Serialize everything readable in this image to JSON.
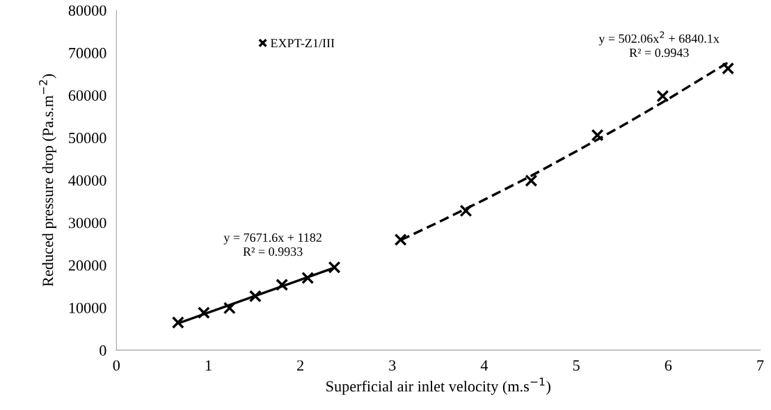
{
  "chart_data": {
    "type": "scatter",
    "xlabel": "Superficial air inlet velocity (m.s$^{−1}$)",
    "ylabel": "Reduced pressure drop (Pa.s.m$^{−2}$)",
    "series": [
      {
        "name": "EXPT-Z1/III",
        "color": "#000000",
        "marker": "cross",
        "x": [
          0.67,
          0.95,
          1.23,
          1.51,
          1.8,
          2.08,
          2.37,
          3.09,
          3.8,
          4.51,
          5.23,
          5.94,
          6.65
        ],
        "values": [
          6500,
          8800,
          9900,
          12700,
          15400,
          17000,
          19500,
          26000,
          32800,
          39900,
          50600,
          59800,
          66300
        ]
      },
      {
        "type": "line",
        "color": "#000000",
        "line_style": "solid",
        "x": [
          0.67,
          2.37
        ],
        "values": [
          6300,
          19400
        ]
      },
      {
        "type": "line",
        "color": "#000000",
        "line_style": "dashed",
        "x": [
          3.09,
          3.5,
          4.0,
          4.5,
          5.0,
          5.5,
          6.0,
          6.65
        ],
        "values": [
          25900,
          30100,
          35400,
          40900,
          46800,
          52800,
          59100,
          67700
        ]
      }
    ],
    "annotations": [
      "y = 7671.6x + 1182\nR² = 0.9933",
      "y = 502.06x$^{2}$ + 6840.1x\nR² = 0.9943"
    ],
    "xlim": [
      0,
      7
    ],
    "xticks": [
      0,
      1,
      2,
      3,
      4,
      5,
      6,
      7
    ],
    "ylim": [
      0,
      80000
    ],
    "yticks": [
      0,
      10000,
      20000,
      30000,
      40000,
      50000,
      60000,
      70000,
      80000
    ],
    "grid": false,
    "legend": "top left"
  }
}
